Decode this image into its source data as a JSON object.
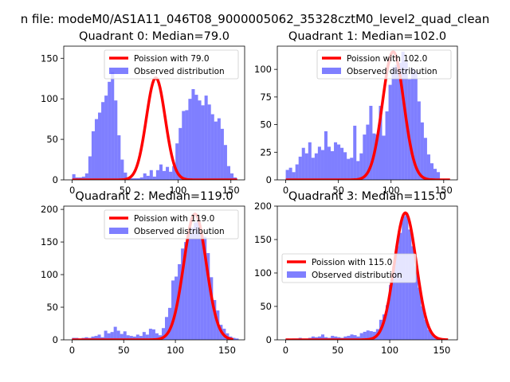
{
  "figure_title": "n file: modeM0/AS1A11_046T08_9000005062_35328cztM0_level2_quad_clean",
  "colors": {
    "hist": "#0000ff",
    "fit": "#ff0000",
    "axes": "#000000"
  },
  "chart_data": [
    {
      "type": "bar",
      "title": "Quadrant 0: Median=79.0",
      "xlim": [
        -8,
        163
      ],
      "ylim": [
        0,
        165
      ],
      "xticks": [
        0,
        50,
        100,
        150
      ],
      "yticks": [
        0,
        50,
        100,
        150
      ],
      "legend": {
        "position": "top-right",
        "fit_label": "Poission with 79.0",
        "hist_label": "Observed distribution"
      },
      "fit": {
        "peak_x": 79,
        "sigma": 8.9,
        "peak_y": 126
      },
      "bins": {
        "start": 0,
        "width": 3.05
      },
      "hist": [
        7,
        3,
        3,
        4,
        8,
        29,
        60,
        75,
        83,
        96,
        104,
        121,
        133,
        98,
        55,
        25,
        9,
        3,
        2,
        2,
        2,
        3,
        8,
        5,
        12,
        4,
        12,
        19,
        11,
        16,
        10,
        17,
        45,
        64,
        85,
        86,
        100,
        112,
        105,
        98,
        92,
        104,
        93,
        81,
        72,
        76,
        63,
        43,
        17,
        8,
        3
      ]
    },
    {
      "type": "bar",
      "title": "Quadrant 1: Median=102.0",
      "xlim": [
        -8,
        163
      ],
      "ylim": [
        0,
        121
      ],
      "xticks": [
        0,
        50,
        100,
        150
      ],
      "yticks": [
        0,
        25,
        50,
        75,
        100
      ],
      "legend": {
        "position": "top-right",
        "fit_label": "Poission with 102.0",
        "hist_label": "Observed distribution"
      },
      "fit": {
        "peak_x": 102,
        "sigma": 10.1,
        "peak_y": 116
      },
      "bins": {
        "start": 0,
        "width": 3.05
      },
      "hist": [
        9,
        11,
        7,
        14,
        21,
        29,
        24,
        34,
        20,
        24,
        30,
        27,
        44,
        30,
        26,
        34,
        32,
        29,
        25,
        19,
        20,
        49,
        17,
        24,
        41,
        50,
        67,
        42,
        41,
        67,
        40,
        62,
        86,
        102,
        104,
        106,
        116,
        107,
        91,
        101,
        98,
        71,
        52,
        38,
        23,
        15,
        10,
        7
      ]
    },
    {
      "type": "bar",
      "title": "Quadrant 2: Median=119.0",
      "xlim": [
        -8,
        167
      ],
      "ylim": [
        0,
        205
      ],
      "xticks": [
        0,
        50,
        100,
        150
      ],
      "yticks": [
        0,
        50,
        100,
        150,
        200
      ],
      "legend": {
        "position": "top-right",
        "fit_label": "Poission with 119.0",
        "hist_label": "Observed distribution"
      },
      "fit": {
        "peak_x": 119,
        "sigma": 10.9,
        "peak_y": 193
      },
      "bins": {
        "start": 0,
        "width": 3.1
      },
      "hist": [
        3,
        3,
        2,
        3,
        4,
        3,
        5,
        6,
        8,
        4,
        14,
        10,
        12,
        20,
        14,
        9,
        13,
        7,
        6,
        5,
        8,
        6,
        12,
        8,
        17,
        16,
        10,
        7,
        18,
        35,
        49,
        91,
        97,
        116,
        140,
        150,
        163,
        172,
        180,
        184,
        162,
        158,
        133,
        96,
        61,
        45,
        23,
        17,
        10,
        5,
        3,
        2
      ]
    },
    {
      "type": "bar",
      "title": "Quadrant 3: Median=115.0",
      "xlim": [
        -8,
        165
      ],
      "ylim": [
        0,
        200
      ],
      "xticks": [
        0,
        50,
        100,
        150
      ],
      "yticks": [
        0,
        50,
        100,
        150,
        200
      ],
      "legend": {
        "position": "center-left",
        "fit_label": "Poission with 115.0",
        "hist_label": "Observed distribution"
      },
      "fit": {
        "peak_x": 115,
        "sigma": 10.5,
        "peak_y": 190
      },
      "bins": {
        "start": 0,
        "width": 3.1
      },
      "hist": [
        2,
        1,
        2,
        2,
        3,
        2,
        2,
        3,
        5,
        4,
        5,
        8,
        4,
        3,
        6,
        5,
        4,
        3,
        5,
        6,
        8,
        7,
        5,
        10,
        12,
        14,
        13,
        12,
        16,
        30,
        38,
        52,
        82,
        110,
        140,
        160,
        185,
        190,
        165,
        140,
        110,
        78,
        50,
        30,
        15,
        9,
        5,
        3,
        2,
        1
      ]
    }
  ]
}
